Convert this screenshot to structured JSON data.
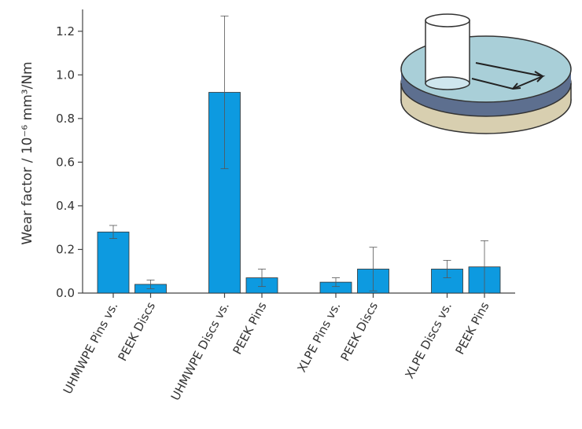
{
  "chart_data": {
    "type": "bar",
    "ylabel": "Wear factor / 10⁻⁶ mm³/Nm",
    "categories": [
      "UHMWPE Pins vs.",
      "PEEK Discs",
      "UHMWPE Discs vs.",
      "PEEK Pins",
      "XLPE Pins vs.",
      "PEEK Discs",
      "XLPE Discs vs.",
      "PEEK Pins"
    ],
    "values": [
      0.28,
      0.04,
      0.92,
      0.07,
      0.05,
      0.11,
      0.11,
      0.12
    ],
    "errors": [
      0.03,
      0.02,
      0.35,
      0.04,
      0.02,
      0.1,
      0.04,
      0.12
    ],
    "color": "#0d9ae0",
    "ylim": [
      0,
      1.3
    ],
    "yticks": [
      {
        "value": 0,
        "label": "0.0"
      },
      0.2,
      0.4,
      0.6,
      0.8,
      {
        "value": 1,
        "label": "1.0"
      },
      1.2
    ]
  }
}
